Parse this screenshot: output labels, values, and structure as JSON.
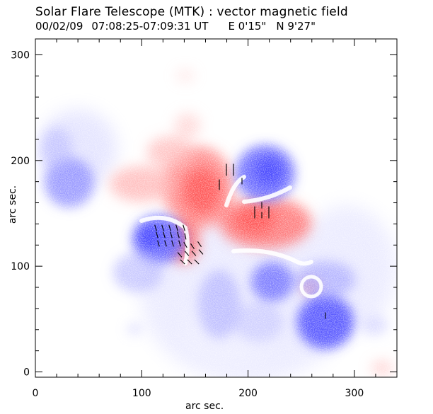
{
  "header": {
    "title": "Solar Flare Telescope (MTK) : vector magnetic field",
    "date": "00/02/09",
    "time_range": "07:08:25-07:09:31 UT",
    "east_offset": "E 0'15\"",
    "north_offset": "N 9'27\""
  },
  "axes": {
    "xlabel": "arc sec.",
    "ylabel": "arc sec.",
    "xlim": [
      0,
      340
    ],
    "ylim": [
      -5,
      315
    ],
    "x_major_ticks": [
      0,
      100,
      200,
      300
    ],
    "y_major_ticks": [
      0,
      100,
      200,
      300
    ],
    "x_tick_labels": [
      "0",
      "100",
      "200",
      "300"
    ],
    "y_tick_labels": [
      "0",
      "100",
      "200",
      "300"
    ]
  },
  "colors": {
    "positive_polarity": "#ff4d4d",
    "negative_polarity": "#4d4dff",
    "vectors": "#000000",
    "frame": "#000000"
  }
}
